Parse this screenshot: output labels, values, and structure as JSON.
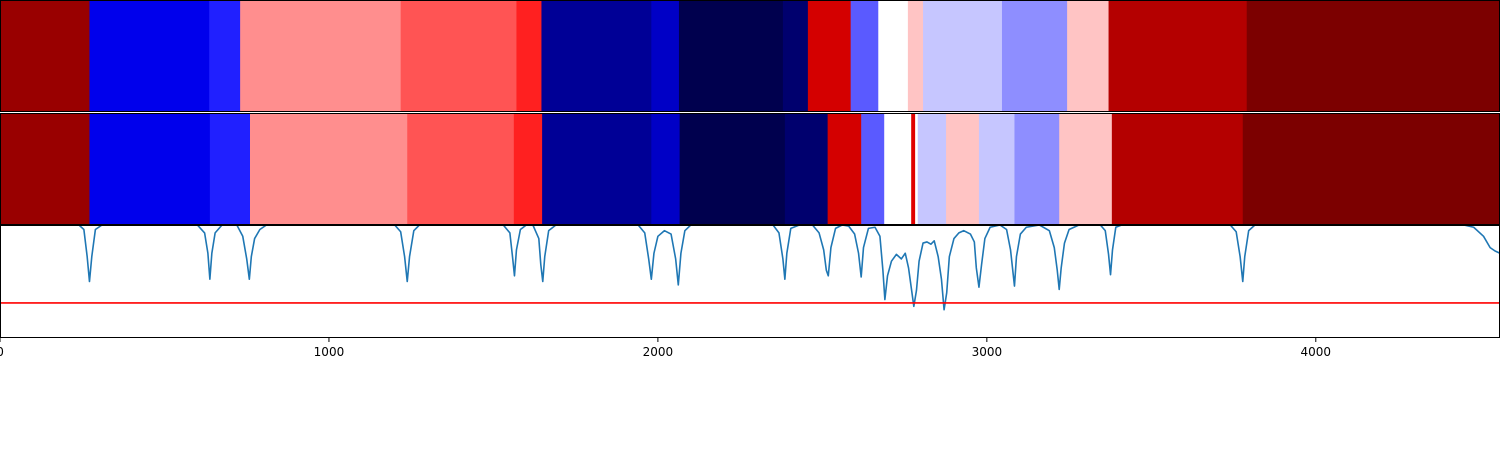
{
  "chart_data": [
    {
      "type": "heatmap",
      "colormap": "seismic",
      "x_range": [
        0,
        4560
      ],
      "segments": [
        {
          "start": 0,
          "end": 272,
          "color": "#990000"
        },
        {
          "start": 272,
          "end": 636,
          "color": "#0000ec"
        },
        {
          "start": 636,
          "end": 730,
          "color": "#2020ff"
        },
        {
          "start": 730,
          "end": 1218,
          "color": "#ff8e8e"
        },
        {
          "start": 1218,
          "end": 1570,
          "color": "#ff5454"
        },
        {
          "start": 1570,
          "end": 1646,
          "color": "#ff2020"
        },
        {
          "start": 1646,
          "end": 1980,
          "color": "#000096"
        },
        {
          "start": 1980,
          "end": 2064,
          "color": "#0000c6"
        },
        {
          "start": 2064,
          "end": 2380,
          "color": "#00004e"
        },
        {
          "start": 2380,
          "end": 2456,
          "color": "#00006e"
        },
        {
          "start": 2456,
          "end": 2586,
          "color": "#d40000"
        },
        {
          "start": 2586,
          "end": 2670,
          "color": "#5a5aff"
        },
        {
          "start": 2670,
          "end": 2760,
          "color": "#ffffff"
        },
        {
          "start": 2760,
          "end": 2806,
          "color": "#ffc4c4"
        },
        {
          "start": 2806,
          "end": 3046,
          "color": "#c6c6ff"
        },
        {
          "start": 3046,
          "end": 3244,
          "color": "#8e8eff"
        },
        {
          "start": 3244,
          "end": 3370,
          "color": "#ffc4c4"
        },
        {
          "start": 3370,
          "end": 3790,
          "color": "#b40000"
        },
        {
          "start": 3790,
          "end": 4560,
          "color": "#7c0000"
        }
      ]
    },
    {
      "type": "heatmap",
      "colormap": "seismic",
      "x_range": [
        0,
        4560
      ],
      "segments": [
        {
          "start": 0,
          "end": 272,
          "color": "#990000"
        },
        {
          "start": 272,
          "end": 638,
          "color": "#0000ec"
        },
        {
          "start": 638,
          "end": 760,
          "color": "#2020ff"
        },
        {
          "start": 760,
          "end": 1238,
          "color": "#ff8e8e"
        },
        {
          "start": 1238,
          "end": 1562,
          "color": "#ff5454"
        },
        {
          "start": 1562,
          "end": 1648,
          "color": "#ff2020"
        },
        {
          "start": 1648,
          "end": 1980,
          "color": "#000096"
        },
        {
          "start": 1980,
          "end": 2066,
          "color": "#0000c6"
        },
        {
          "start": 2066,
          "end": 2386,
          "color": "#00004e"
        },
        {
          "start": 2386,
          "end": 2516,
          "color": "#00006e"
        },
        {
          "start": 2516,
          "end": 2618,
          "color": "#d40000"
        },
        {
          "start": 2618,
          "end": 2688,
          "color": "#5a5aff"
        },
        {
          "start": 2688,
          "end": 2770,
          "color": "#ffffff"
        },
        {
          "start": 2770,
          "end": 2782,
          "color": "#e00000"
        },
        {
          "start": 2782,
          "end": 2790,
          "color": "#ffffff"
        },
        {
          "start": 2790,
          "end": 2876,
          "color": "#c6c6ff"
        },
        {
          "start": 2876,
          "end": 2976,
          "color": "#ffc4c4"
        },
        {
          "start": 2976,
          "end": 3084,
          "color": "#c6c6ff"
        },
        {
          "start": 3084,
          "end": 3220,
          "color": "#8e8eff"
        },
        {
          "start": 3220,
          "end": 3380,
          "color": "#ffc4c4"
        },
        {
          "start": 3380,
          "end": 3778,
          "color": "#b40000"
        },
        {
          "start": 3778,
          "end": 4560,
          "color": "#7c0000"
        }
      ]
    },
    {
      "type": "line",
      "xlim": [
        0,
        4560
      ],
      "ylim": [
        0,
        1
      ],
      "xticks": [
        0,
        1000,
        2000,
        3000,
        4000
      ],
      "xtick_labels": [
        "0",
        "1000",
        "2000",
        "3000",
        "4000"
      ],
      "grid": false,
      "series": [
        {
          "color": "#1f77b4",
          "points": [
            [
              0,
              1.0
            ],
            [
              240,
              1.0
            ],
            [
              255,
              0.96
            ],
            [
              265,
              0.72
            ],
            [
              272,
              0.5
            ],
            [
              279,
              0.72
            ],
            [
              290,
              0.96
            ],
            [
              310,
              1.0
            ],
            [
              600,
              1.0
            ],
            [
              622,
              0.93
            ],
            [
              632,
              0.75
            ],
            [
              638,
              0.52
            ],
            [
              644,
              0.75
            ],
            [
              654,
              0.93
            ],
            [
              675,
              1.0
            ],
            [
              720,
              1.0
            ],
            [
              738,
              0.9
            ],
            [
              750,
              0.7
            ],
            [
              758,
              0.52
            ],
            [
              764,
              0.72
            ],
            [
              774,
              0.88
            ],
            [
              790,
              0.96
            ],
            [
              810,
              1.0
            ],
            [
              1200,
              1.0
            ],
            [
              1218,
              0.94
            ],
            [
              1230,
              0.72
            ],
            [
              1238,
              0.5
            ],
            [
              1245,
              0.72
            ],
            [
              1258,
              0.95
            ],
            [
              1275,
              1.0
            ],
            [
              1530,
              1.0
            ],
            [
              1550,
              0.93
            ],
            [
              1558,
              0.72
            ],
            [
              1564,
              0.55
            ],
            [
              1570,
              0.78
            ],
            [
              1582,
              0.96
            ],
            [
              1600,
              1.0
            ],
            [
              1620,
              1.0
            ],
            [
              1638,
              0.88
            ],
            [
              1644,
              0.65
            ],
            [
              1650,
              0.5
            ],
            [
              1656,
              0.72
            ],
            [
              1668,
              0.95
            ],
            [
              1690,
              1.0
            ],
            [
              1940,
              1.0
            ],
            [
              1960,
              0.93
            ],
            [
              1972,
              0.7
            ],
            [
              1980,
              0.52
            ],
            [
              1988,
              0.75
            ],
            [
              2000,
              0.9
            ],
            [
              2020,
              0.95
            ],
            [
              2040,
              0.92
            ],
            [
              2054,
              0.7
            ],
            [
              2062,
              0.47
            ],
            [
              2070,
              0.75
            ],
            [
              2082,
              0.95
            ],
            [
              2100,
              1.0
            ],
            [
              2350,
              1.0
            ],
            [
              2368,
              0.93
            ],
            [
              2380,
              0.7
            ],
            [
              2386,
              0.52
            ],
            [
              2392,
              0.75
            ],
            [
              2404,
              0.97
            ],
            [
              2430,
              1.0
            ],
            [
              2470,
              1.0
            ],
            [
              2490,
              0.93
            ],
            [
              2504,
              0.78
            ],
            [
              2512,
              0.6
            ],
            [
              2518,
              0.55
            ],
            [
              2526,
              0.8
            ],
            [
              2540,
              0.97
            ],
            [
              2560,
              1.0
            ],
            [
              2580,
              0.99
            ],
            [
              2598,
              0.92
            ],
            [
              2610,
              0.75
            ],
            [
              2618,
              0.54
            ],
            [
              2625,
              0.8
            ],
            [
              2640,
              0.97
            ],
            [
              2660,
              0.98
            ],
            [
              2675,
              0.9
            ],
            [
              2684,
              0.6
            ],
            [
              2690,
              0.34
            ],
            [
              2698,
              0.55
            ],
            [
              2710,
              0.68
            ],
            [
              2725,
              0.74
            ],
            [
              2740,
              0.7
            ],
            [
              2752,
              0.75
            ],
            [
              2762,
              0.62
            ],
            [
              2770,
              0.45
            ],
            [
              2778,
              0.28
            ],
            [
              2786,
              0.42
            ],
            [
              2794,
              0.68
            ],
            [
              2806,
              0.84
            ],
            [
              2818,
              0.85
            ],
            [
              2830,
              0.83
            ],
            [
              2840,
              0.86
            ],
            [
              2852,
              0.72
            ],
            [
              2862,
              0.52
            ],
            [
              2870,
              0.25
            ],
            [
              2878,
              0.4
            ],
            [
              2886,
              0.72
            ],
            [
              2900,
              0.88
            ],
            [
              2915,
              0.93
            ],
            [
              2930,
              0.95
            ],
            [
              2950,
              0.92
            ],
            [
              2962,
              0.85
            ],
            [
              2968,
              0.62
            ],
            [
              2976,
              0.45
            ],
            [
              2984,
              0.65
            ],
            [
              2994,
              0.88
            ],
            [
              3010,
              0.98
            ],
            [
              3040,
              1.0
            ],
            [
              3060,
              0.96
            ],
            [
              3072,
              0.78
            ],
            [
              3084,
              0.46
            ],
            [
              3090,
              0.72
            ],
            [
              3102,
              0.92
            ],
            [
              3120,
              0.98
            ],
            [
              3160,
              1.0
            ],
            [
              3190,
              0.95
            ],
            [
              3205,
              0.8
            ],
            [
              3214,
              0.6
            ],
            [
              3220,
              0.43
            ],
            [
              3226,
              0.62
            ],
            [
              3236,
              0.84
            ],
            [
              3250,
              0.96
            ],
            [
              3280,
              1.0
            ],
            [
              3345,
              1.0
            ],
            [
              3360,
              0.95
            ],
            [
              3370,
              0.74
            ],
            [
              3376,
              0.56
            ],
            [
              3382,
              0.78
            ],
            [
              3392,
              0.98
            ],
            [
              3410,
              1.0
            ],
            [
              3740,
              1.0
            ],
            [
              3758,
              0.94
            ],
            [
              3770,
              0.72
            ],
            [
              3778,
              0.5
            ],
            [
              3784,
              0.72
            ],
            [
              3796,
              0.95
            ],
            [
              3815,
              1.0
            ],
            [
              4450,
              1.0
            ],
            [
              4480,
              0.98
            ],
            [
              4510,
              0.9
            ],
            [
              4530,
              0.8
            ],
            [
              4545,
              0.77
            ],
            [
              4560,
              0.75
            ]
          ]
        },
        {
          "color": "#ff0000",
          "points": [
            [
              0,
              0.31
            ],
            [
              4560,
              0.31
            ]
          ]
        }
      ]
    }
  ]
}
